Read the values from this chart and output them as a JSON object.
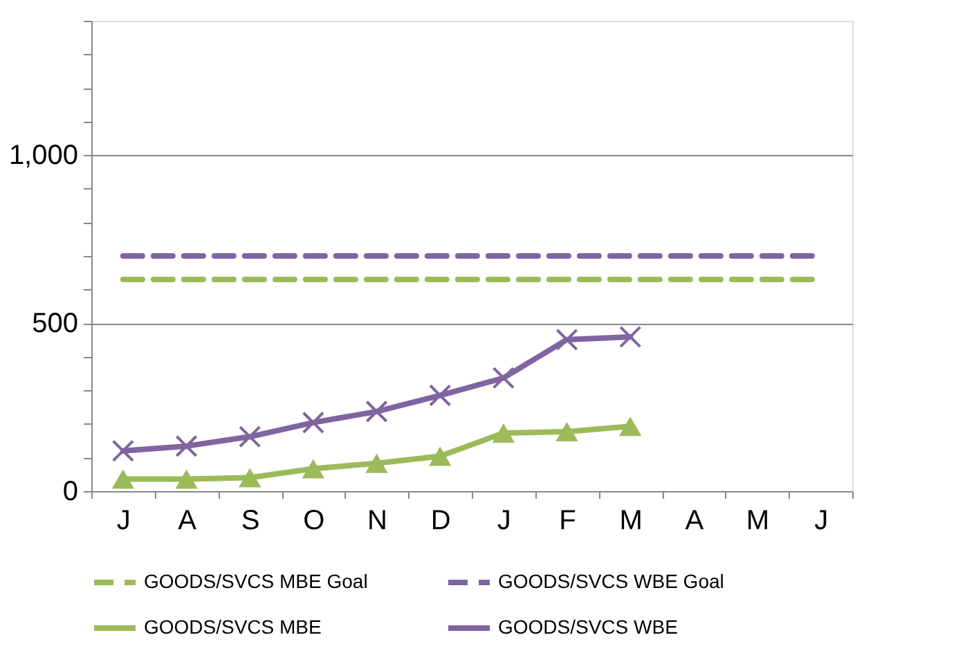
{
  "chart_data": {
    "type": "line",
    "categories": [
      "J",
      "A",
      "S",
      "O",
      "N",
      "D",
      "J",
      "F",
      "M",
      "A",
      "M",
      "J"
    ],
    "ylim": [
      0,
      1400
    ],
    "yticks": [
      0,
      {
        "value": 100,
        "label": null
      },
      {
        "value": 200,
        "label": null
      },
      {
        "value": 300,
        "label": null
      },
      {
        "value": 400,
        "label": null
      },
      {
        "value": 500,
        "label": "500"
      },
      {
        "value": 600,
        "label": null
      },
      {
        "value": 700,
        "label": null
      },
      {
        "value": 800,
        "label": null
      },
      {
        "value": 900,
        "label": null
      },
      {
        "value": 1000,
        "label": "1,000"
      },
      {
        "value": 1100,
        "label": null
      },
      {
        "value": 1200,
        "label": null
      },
      {
        "value": 1300,
        "label": null
      },
      {
        "value": 1400,
        "label": null
      }
    ],
    "grid": "y",
    "legend": "bottom",
    "series": [
      {
        "name": "GOODS/SVCS MBE Goal",
        "color": "#9bbb59",
        "line_style": "dashed",
        "marker": "none",
        "values": [
          630,
          630,
          630,
          630,
          630,
          630,
          630,
          630,
          630,
          630,
          630,
          630
        ]
      },
      {
        "name": "GOODS/SVCS WBE Goal",
        "color": "#8064a2",
        "line_style": "dashed",
        "marker": "none",
        "values": [
          700,
          700,
          700,
          700,
          700,
          700,
          700,
          700,
          700,
          700,
          700,
          700
        ]
      },
      {
        "name": "GOODS/SVCS MBE",
        "color": "#9bbb59",
        "line_style": "solid",
        "marker": "triangle",
        "values": [
          36,
          36,
          40,
          67,
          83,
          104,
          173,
          177,
          193,
          null,
          null,
          null
        ]
      },
      {
        "name": "GOODS/SVCS WBE",
        "color": "#8064a2",
        "line_style": "solid",
        "marker": "cross",
        "values": [
          120,
          134,
          162,
          204,
          237,
          285,
          337,
          451,
          459,
          null,
          null,
          null
        ]
      }
    ]
  }
}
